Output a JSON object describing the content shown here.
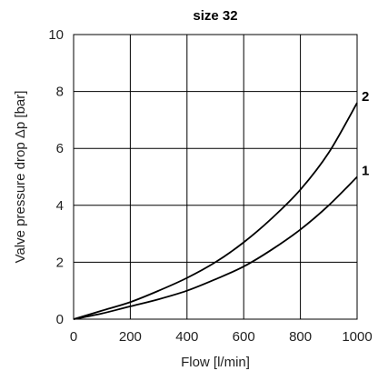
{
  "chart_data": {
    "type": "line",
    "title": "size 32",
    "xlabel": "Flow [l/min]",
    "ylabel": "Valve pressure drop Δp [bar]",
    "xlim": [
      0,
      1000
    ],
    "ylim": [
      0,
      10
    ],
    "x_ticks": [
      "0",
      "200",
      "400",
      "600",
      "800",
      "1000"
    ],
    "y_ticks": [
      "0",
      "2",
      "4",
      "6",
      "8",
      "10"
    ],
    "grid": true,
    "series": [
      {
        "name": "1",
        "x": [
          0,
          100,
          200,
          300,
          400,
          500,
          600,
          700,
          800,
          900,
          1000
        ],
        "y": [
          0,
          0.2,
          0.45,
          0.7,
          1.0,
          1.4,
          1.85,
          2.45,
          3.15,
          4.0,
          5.0
        ]
      },
      {
        "name": "2",
        "x": [
          0,
          100,
          200,
          300,
          400,
          500,
          600,
          700,
          800,
          900,
          1000
        ],
        "y": [
          0,
          0.3,
          0.6,
          1.0,
          1.45,
          2.0,
          2.7,
          3.55,
          4.55,
          5.85,
          7.6
        ]
      }
    ]
  }
}
